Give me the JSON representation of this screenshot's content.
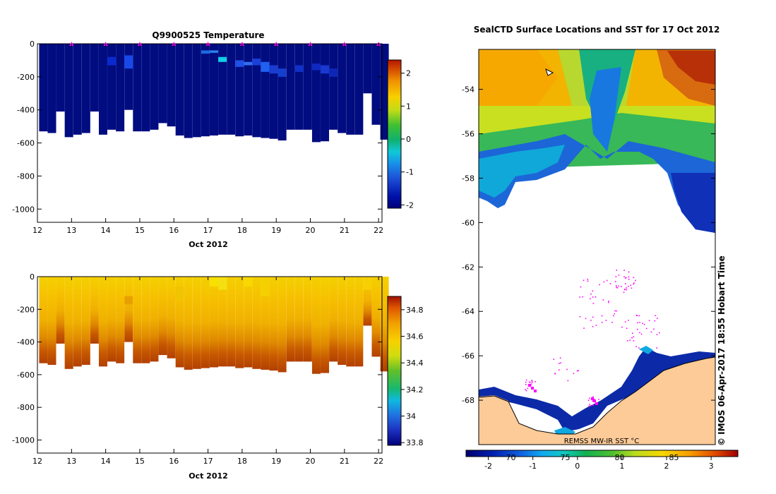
{
  "chart_data": [
    {
      "type": "heatmap",
      "name": "temperature-section",
      "title": "Q9900525  Temperature",
      "xlabel": "Oct 2012",
      "ylabel": "",
      "xlim": [
        12,
        22.1
      ],
      "ylim": [
        -1080,
        0
      ],
      "x_ticks": [
        "12",
        "13",
        "14",
        "15",
        "16",
        "17",
        "18",
        "19",
        "20",
        "21",
        "22"
      ],
      "y_ticks": [
        "0",
        "-200",
        "-400",
        "-600",
        "-800",
        "-1000"
      ],
      "colorbar": {
        "min": -2.1,
        "max": 2.4,
        "ticks": [
          "-2",
          "-1",
          "0",
          "1",
          "2"
        ]
      },
      "profile_markers_days": [
        13,
        14,
        15,
        16,
        17,
        18,
        19,
        20,
        21,
        22
      ],
      "profiles": [
        {
          "t": 12.05,
          "depth": 530
        },
        {
          "t": 12.3,
          "depth": 540
        },
        {
          "t": 12.55,
          "depth": 410
        },
        {
          "t": 12.8,
          "depth": 565
        },
        {
          "t": 13.05,
          "depth": 550
        },
        {
          "t": 13.3,
          "depth": 540
        },
        {
          "t": 13.55,
          "depth": 410
        },
        {
          "t": 13.8,
          "depth": 550
        },
        {
          "t": 14.05,
          "depth": 520
        },
        {
          "t": 14.3,
          "depth": 530
        },
        {
          "t": 14.55,
          "depth": 400
        },
        {
          "t": 14.8,
          "depth": 530
        },
        {
          "t": 15.05,
          "depth": 530
        },
        {
          "t": 15.3,
          "depth": 520
        },
        {
          "t": 15.55,
          "depth": 480
        },
        {
          "t": 15.8,
          "depth": 500
        },
        {
          "t": 16.05,
          "depth": 555
        },
        {
          "t": 16.3,
          "depth": 570
        },
        {
          "t": 16.55,
          "depth": 565
        },
        {
          "t": 16.8,
          "depth": 560
        },
        {
          "t": 17.05,
          "depth": 555
        },
        {
          "t": 17.3,
          "depth": 550
        },
        {
          "t": 17.55,
          "depth": 550
        },
        {
          "t": 17.8,
          "depth": 560
        },
        {
          "t": 18.05,
          "depth": 555
        },
        {
          "t": 18.3,
          "depth": 565
        },
        {
          "t": 18.55,
          "depth": 570
        },
        {
          "t": 18.8,
          "depth": 575
        },
        {
          "t": 19.05,
          "depth": 585
        },
        {
          "t": 19.3,
          "depth": 520
        },
        {
          "t": 19.55,
          "depth": 520
        },
        {
          "t": 19.8,
          "depth": 520
        },
        {
          "t": 20.05,
          "depth": 595
        },
        {
          "t": 20.3,
          "depth": 590
        },
        {
          "t": 20.55,
          "depth": 520
        },
        {
          "t": 20.8,
          "depth": 540
        },
        {
          "t": 21.05,
          "depth": 550
        },
        {
          "t": 21.3,
          "depth": 550
        },
        {
          "t": 21.55,
          "depth": 300
        },
        {
          "t": 21.8,
          "depth": 490
        },
        {
          "t": 22.05,
          "depth": 580
        }
      ]
    },
    {
      "type": "heatmap",
      "name": "salinity-section",
      "title": "",
      "xlabel": "Oct 2012",
      "xlim": [
        12,
        22.1
      ],
      "ylim": [
        -1080,
        0
      ],
      "x_ticks": [
        "12",
        "13",
        "14",
        "15",
        "16",
        "17",
        "18",
        "19",
        "20",
        "21",
        "22"
      ],
      "y_ticks": [
        "0",
        "-200",
        "-400",
        "-600",
        "-800",
        "-1000"
      ],
      "colorbar": {
        "min": 33.78,
        "max": 34.9,
        "ticks": [
          "34.8",
          "34.6",
          "34.4",
          "34.2",
          "34",
          "33.8"
        ]
      }
    },
    {
      "type": "map",
      "name": "sst-map",
      "title": "SealCTD Surface Locations and SST for 17 Oct 2012",
      "lat_ticks": [
        "-54",
        "-56",
        "-58",
        "-60",
        "-62",
        "-64",
        "-66",
        "-68"
      ],
      "lat_range": [
        -70,
        -52.2
      ],
      "colorbar": {
        "min": -2.5,
        "max": 3.6,
        "ticks": [
          "-2",
          "-1",
          "0",
          "1",
          "2",
          "3"
        ],
        "fahrenheit_ticks": [
          "70",
          "75",
          "80",
          "85"
        ]
      },
      "colorbar_label": "REMSS MW-IR SST °C",
      "side_label": "© IMOS 06-Apr-2017 18:55 Hobart Time"
    }
  ],
  "colors": {
    "deep_blue": "#000c80",
    "land": "#fccb98",
    "marker": "#ff00ff"
  }
}
